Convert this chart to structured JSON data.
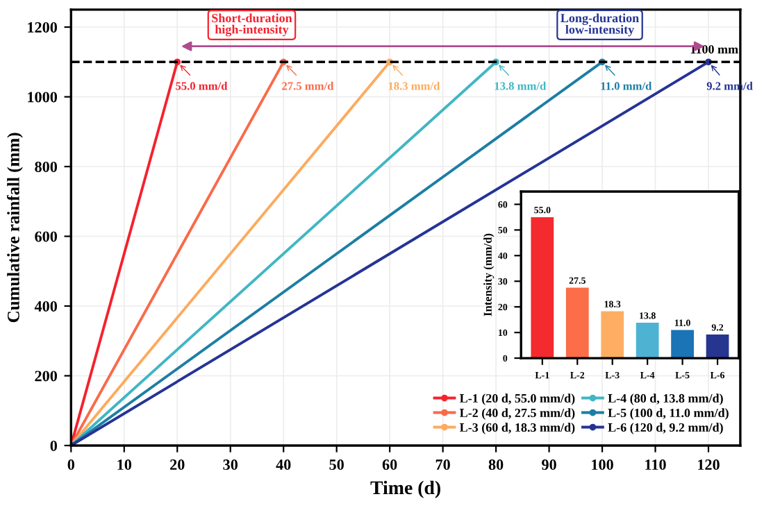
{
  "chart_data": [
    {
      "type": "line",
      "xlabel": "Time (d)",
      "ylabel": "Cumulative rainfall (mm)",
      "xlim": [
        0,
        126
      ],
      "ylim": [
        0,
        1250
      ],
      "xticks": [
        0,
        10,
        20,
        30,
        40,
        50,
        60,
        70,
        80,
        90,
        100,
        110,
        120
      ],
      "yticks": [
        0,
        200,
        400,
        600,
        800,
        1000,
        1200
      ],
      "grid": true,
      "legend": "bottom right",
      "marker": "circle",
      "line_style": "solid",
      "series": [
        {
          "name": "L-1 (20 d, 55.0 mm/d)",
          "color": "#f5222d",
          "x": [
            0,
            20
          ],
          "values": [
            0,
            1100
          ]
        },
        {
          "name": "L-2 (40 d, 27.5 mm/d)",
          "color": "#fa6a4a",
          "x": [
            0,
            40
          ],
          "values": [
            0,
            1100
          ]
        },
        {
          "name": "L-3 (60 d, 18.3 mm/d)",
          "color": "#fdab5e",
          "x": [
            0,
            60
          ],
          "values": [
            0,
            1100
          ]
        },
        {
          "name": "L-4 (80 d, 13.8 mm/d)",
          "color": "#41b6c4",
          "x": [
            0,
            80
          ],
          "values": [
            0,
            1100
          ]
        },
        {
          "name": "L-5 (100 d, 11.0 mm/d)",
          "color": "#1d7ea4",
          "x": [
            0,
            100
          ],
          "values": [
            0,
            1100
          ]
        },
        {
          "name": "L-6 (120 d, 9.2 mm/d)",
          "color": "#253494",
          "x": [
            0,
            120
          ],
          "values": [
            0,
            1100
          ]
        }
      ],
      "ref_lines": [
        {
          "axis": "y",
          "value": 1100,
          "label": "1100 mm",
          "color": "#000000",
          "line_style": "dashed"
        }
      ],
      "annotations": [
        {
          "text": "55.0 mm/d",
          "x": 20,
          "y": 1100
        },
        {
          "text": "27.5 mm/d",
          "x": 40,
          "y": 1100
        },
        {
          "text": "18.3 mm/d",
          "x": 60,
          "y": 1100
        },
        {
          "text": "13.8 mm/d",
          "x": 80,
          "y": 1100
        },
        {
          "text": "11.0 mm/d",
          "x": 100,
          "y": 1100
        },
        {
          "text": "9.2 mm/d",
          "x": 120,
          "y": 1100
        },
        "Short-duration\nhigh-intensity",
        "Long-duration\nlow-intensity"
      ]
    },
    {
      "type": "bar",
      "ylabel": "Intensity (mm/d)",
      "categories": [
        "L-1",
        "L-2",
        "L-3",
        "L-4",
        "L-5",
        "L-6"
      ],
      "values": [
        55.0,
        27.5,
        18.3,
        13.8,
        11.0,
        9.2
      ],
      "colors": [
        "#f42a2e",
        "#fb6e48",
        "#fdae63",
        "#4eb3d3",
        "#1a74b5",
        "#263590"
      ],
      "ylim": [
        0,
        65
      ],
      "yticks": [
        0,
        10,
        20,
        30,
        40,
        50,
        60
      ],
      "value_labels": [
        "55.0",
        "27.5",
        "18.3",
        "13.8",
        "11.0",
        "9.2"
      ]
    }
  ]
}
